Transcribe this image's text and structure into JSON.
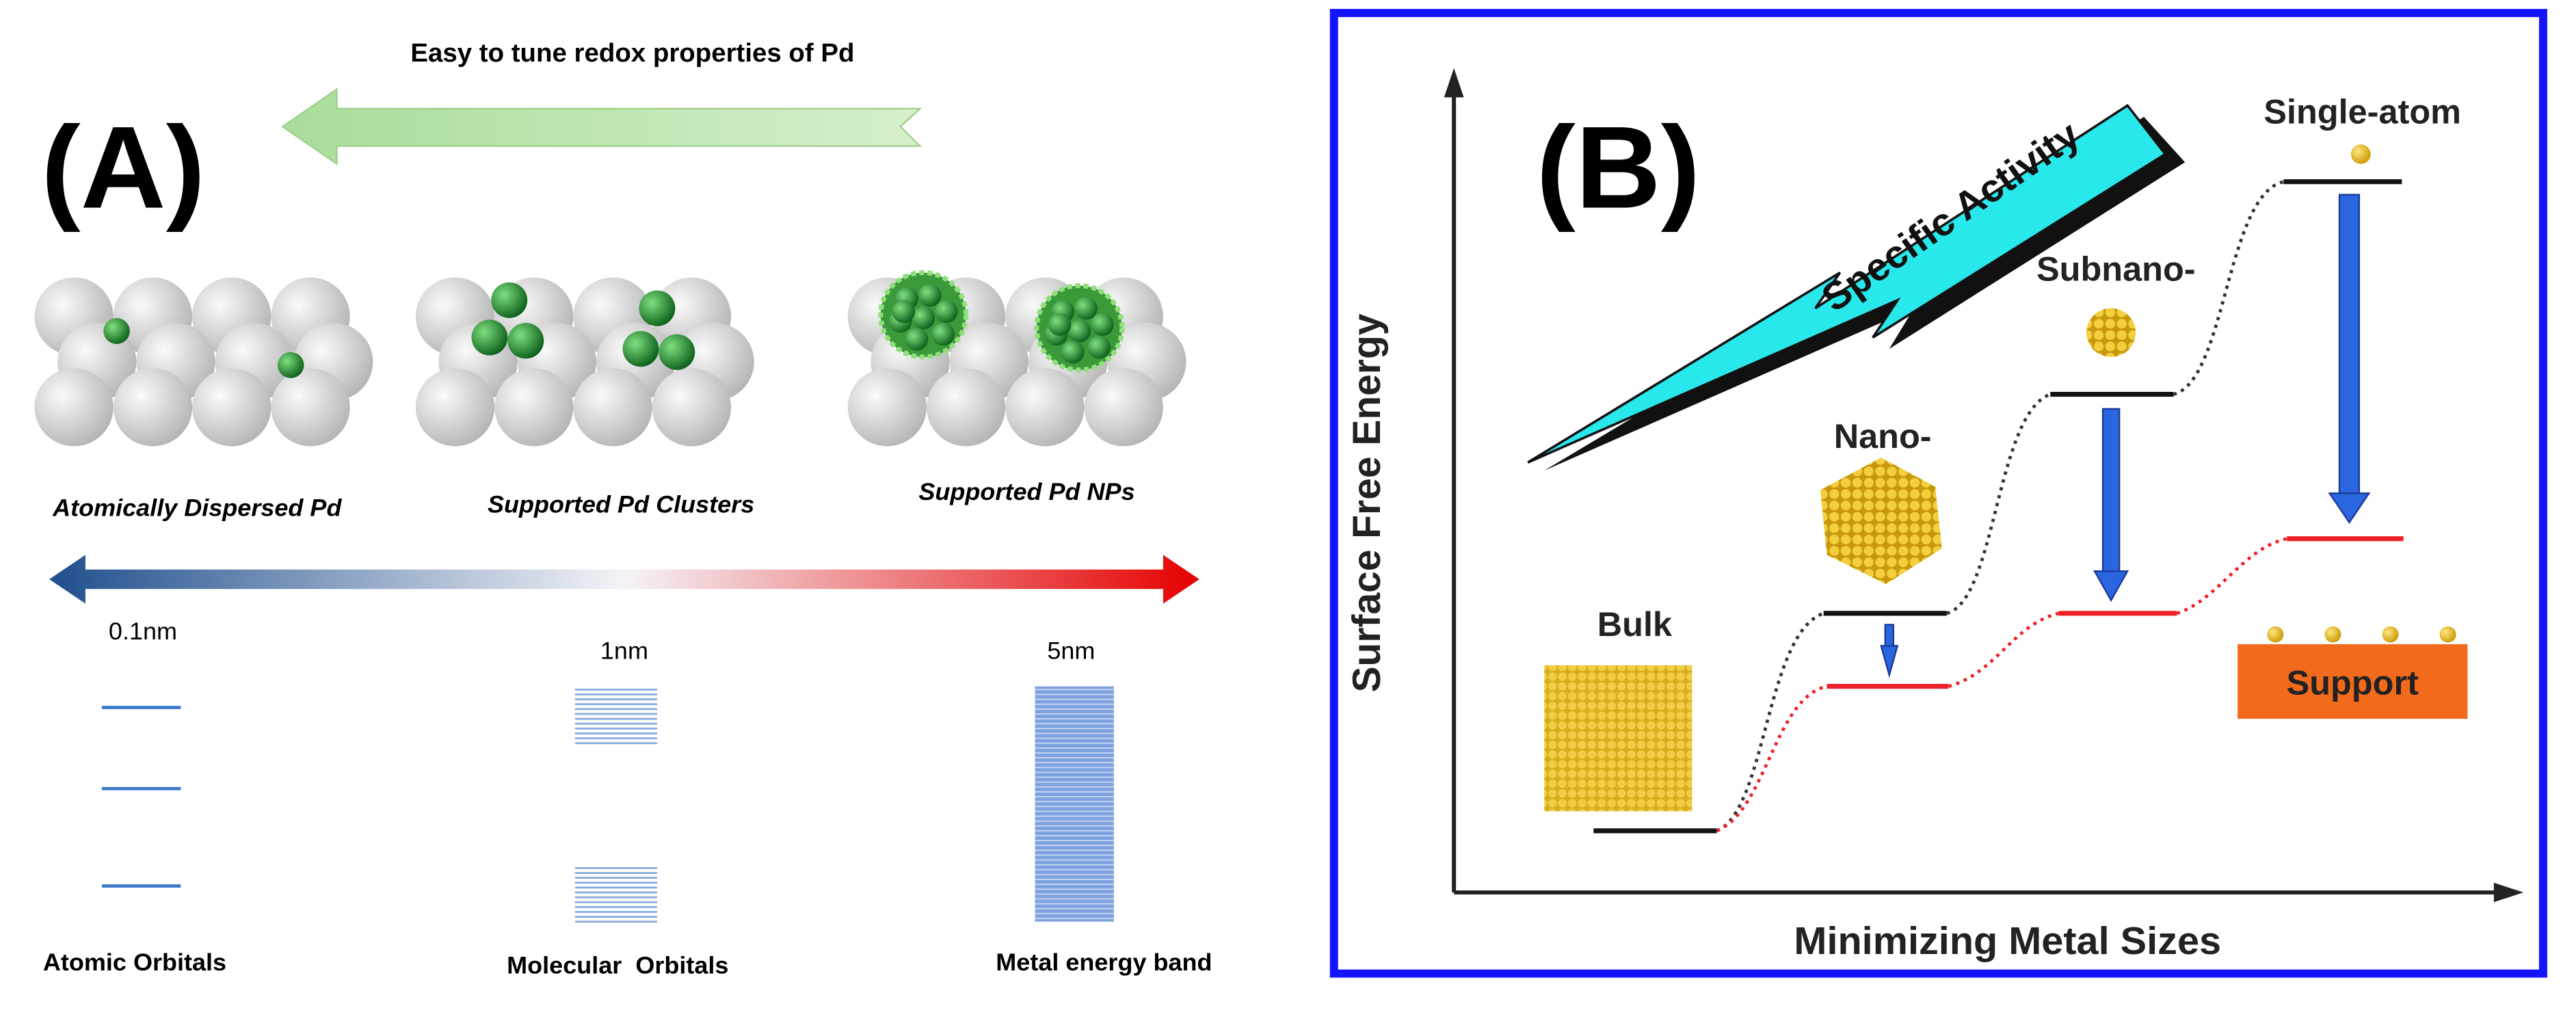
{
  "panel_a": {
    "label": "(A)",
    "arrow_text": "Easy to tune redox properties of Pd",
    "structures": [
      "Atomically Dispersed Pd",
      "Supported Pd Clusters",
      "Supported Pd NPs"
    ],
    "sizes": [
      "0.1nm",
      "1nm",
      "5nm"
    ],
    "levels": [
      "Atomic Orbitals",
      "Molecular  Orbitals",
      "Metal energy band"
    ]
  },
  "panel_b": {
    "label": "(B)",
    "y_axis": "Surface Free Energy",
    "x_axis": "Minimizing Metal Sizes",
    "arrow_text": "Specific Activity",
    "stages": [
      "Bulk",
      "Nano-",
      "Subnano-",
      "Single-atom"
    ],
    "support": "Support"
  }
}
